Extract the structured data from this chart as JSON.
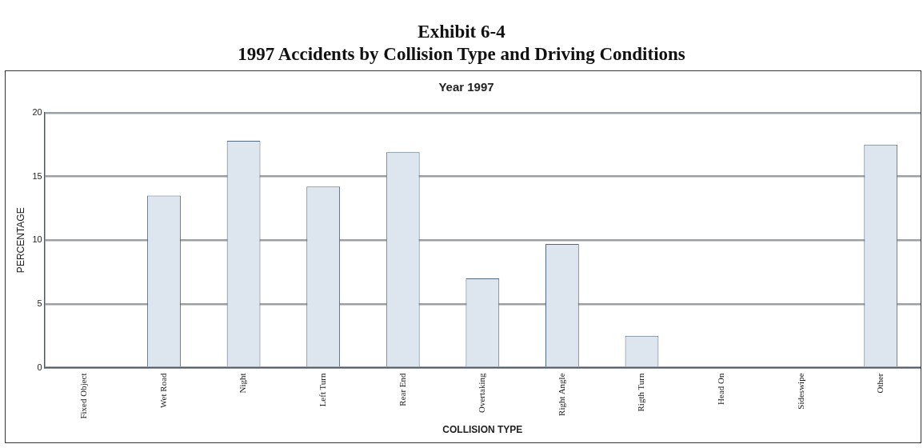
{
  "chart_data": {
    "type": "bar",
    "title": "Exhibit 6-4",
    "subtitle": "1997 Accidents by Collision Type and Driving Conditions",
    "annotations": [
      "Year 1997"
    ],
    "xlabel": "COLLISION TYPE",
    "ylabel": "PERCENTAGE",
    "categories": [
      "Fixed Object",
      "Wet Road",
      "Night",
      "Left Turn",
      "Rear End",
      "Overtaking",
      "Right Angle",
      "Rigth Turn",
      "Head On",
      "Sideswipe",
      "Other"
    ],
    "values": [
      0,
      13.5,
      17.8,
      14.2,
      16.9,
      7,
      9.7,
      2.5,
      0,
      0,
      17.5
    ],
    "color": "#dde5ee",
    "ylim": [
      0,
      20
    ],
    "yticks": [
      0,
      5,
      10,
      15,
      20
    ],
    "grid": "y",
    "legend": false
  }
}
